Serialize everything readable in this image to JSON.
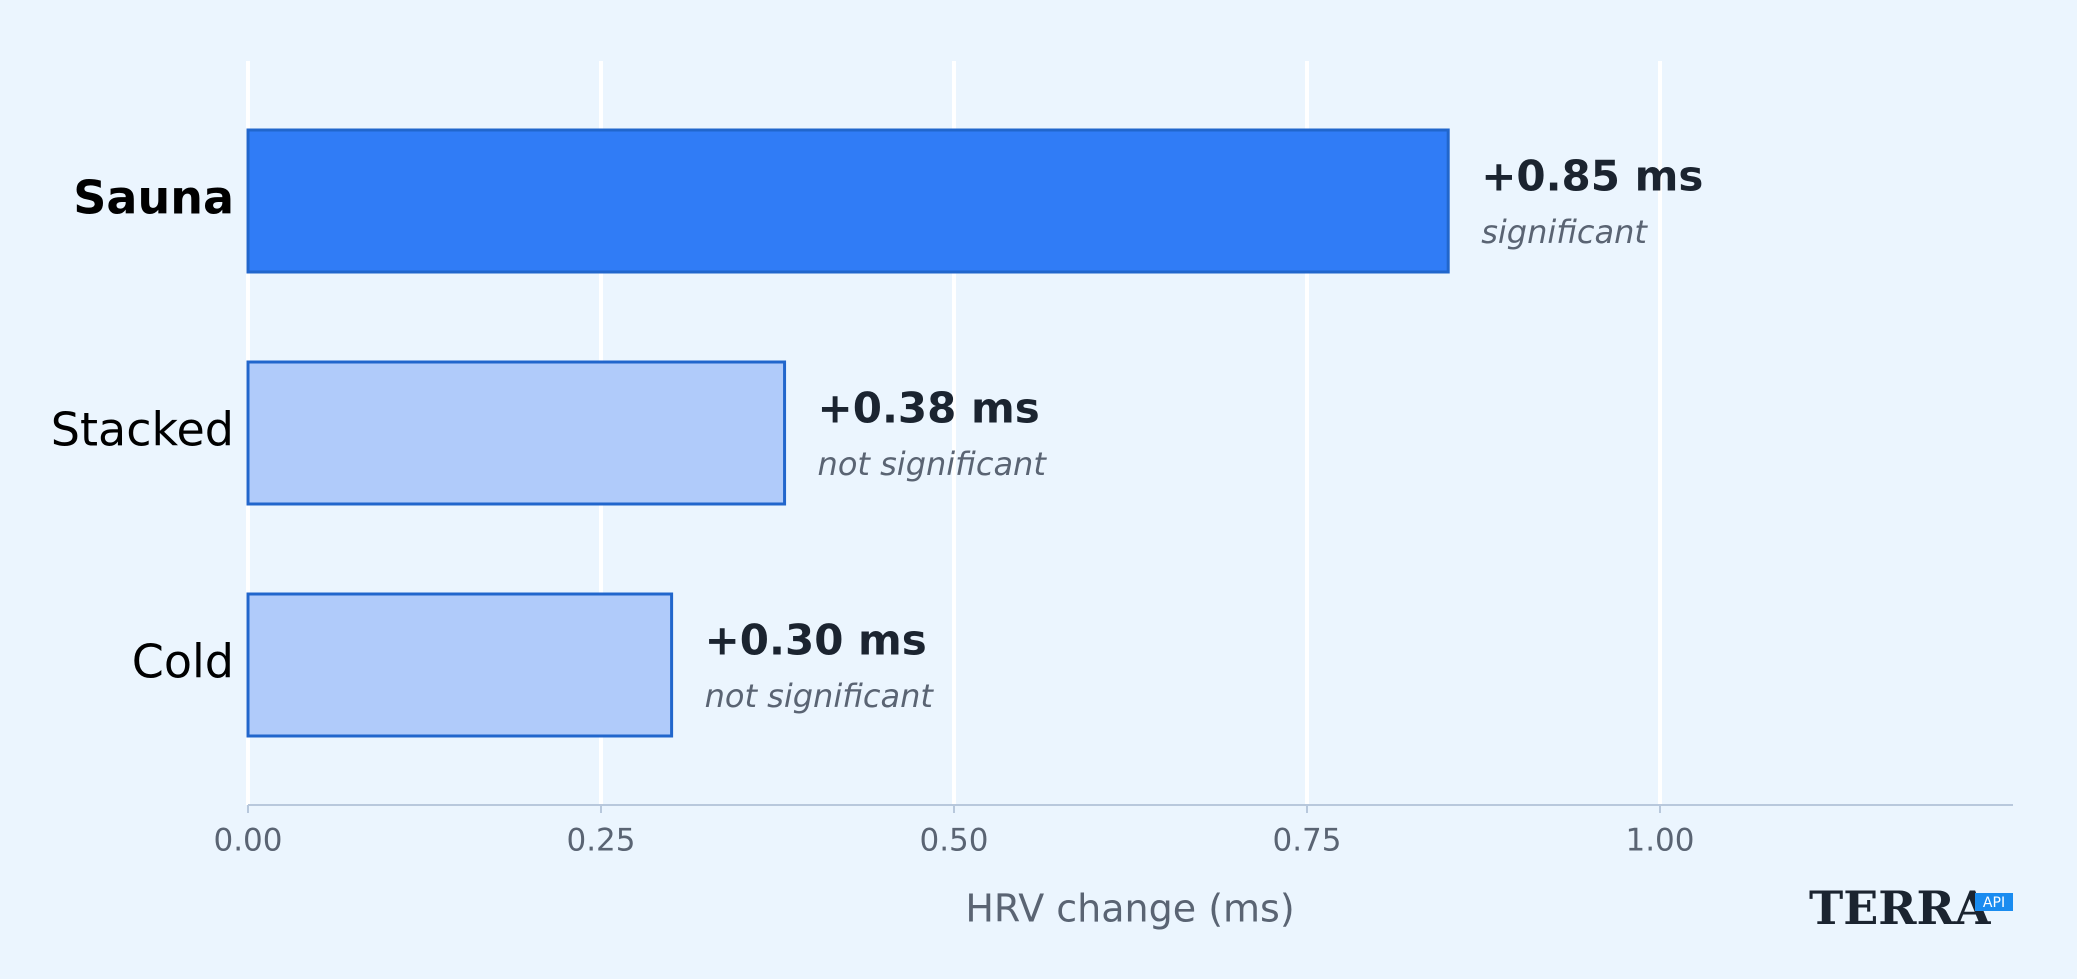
{
  "chart_data": {
    "type": "bar",
    "orientation": "horizontal",
    "categories": [
      "Sauna",
      "Stacked",
      "Cold"
    ],
    "values": [
      0.85,
      0.38,
      0.3
    ],
    "value_labels": [
      "+0.85 ms",
      "+0.38 ms",
      "+0.30 ms"
    ],
    "annotations": [
      "significant",
      "not significant",
      "not significant"
    ],
    "colors": [
      "#307cf6",
      "#b0cbfa",
      "#b0cbfa"
    ],
    "edge_color": "#2166cc",
    "xlabel": "HRV change (ms)",
    "xlim": [
      0,
      1.25
    ],
    "xticks": [
      {
        "value": 0,
        "label": "0.00"
      },
      {
        "value": 0.25,
        "label": "0.25"
      },
      {
        "value": 0.5,
        "label": "0.50"
      },
      {
        "value": 0.75,
        "label": "0.75"
      },
      {
        "value": 1,
        "label": "1.00"
      }
    ],
    "grid": true
  },
  "branding": {
    "text": "TERRA",
    "badge": "API"
  }
}
